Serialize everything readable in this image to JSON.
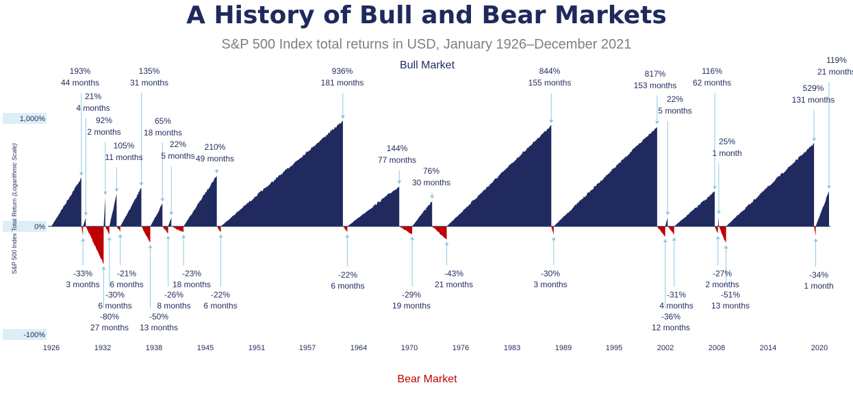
{
  "title": "A History of Bull and Bear Markets",
  "subtitle": "S&P 500 Index total returns in USD, January 1926–December 2021",
  "chart_data": {
    "type": "area",
    "bull_label": "Bull Market",
    "bear_label": "Bear Market",
    "ylabel_main": "S&P 500 Index Total Return",
    "ylabel_note": "(Logarithmic Scale)",
    "y_scale": "log",
    "y_ticks": [
      "1,000%",
      "0%",
      "-100%"
    ],
    "x_ticks": [
      "1926",
      "1932",
      "1938",
      "1945",
      "1951",
      "1957",
      "1964",
      "1970",
      "1976",
      "1983",
      "1989",
      "1995",
      "2002",
      "2008",
      "2014",
      "2020"
    ],
    "x_range": [
      1926,
      2021.9
    ],
    "colors": {
      "bull": "#202a5f",
      "bear": "#c00000",
      "annotation": "#1f2a5c",
      "leader": "#8ec8e0",
      "band": "#ddeef6"
    },
    "bull_markets": [
      {
        "start": 1926.0,
        "end": 1929.7,
        "return_pct": 193,
        "label_pct": "193%",
        "label_dur": "44 months"
      },
      {
        "start": 1929.9,
        "end": 1930.25,
        "return_pct": 21,
        "label_pct": "21%",
        "label_dur": "4 months"
      },
      {
        "start": 1932.45,
        "end": 1932.65,
        "return_pct": 92,
        "label_pct": "92%",
        "label_dur": "2 months"
      },
      {
        "start": 1933.15,
        "end": 1934.05,
        "return_pct": 105,
        "label_pct": "105%",
        "label_dur": "11 months"
      },
      {
        "start": 1934.5,
        "end": 1937.1,
        "return_pct": 135,
        "label_pct": "135%",
        "label_dur": "31 months"
      },
      {
        "start": 1938.2,
        "end": 1939.7,
        "return_pct": 65,
        "label_pct": "65%",
        "label_dur": "18 months"
      },
      {
        "start": 1940.4,
        "end": 1940.8,
        "return_pct": 22,
        "label_pct": "22%",
        "label_dur": "5 months"
      },
      {
        "start": 1942.3,
        "end": 1946.4,
        "return_pct": 210,
        "label_pct": "210%",
        "label_dur": "49 months"
      },
      {
        "start": 1946.9,
        "end": 1961.95,
        "return_pct": 936,
        "label_pct": "936%",
        "label_dur": "181 months"
      },
      {
        "start": 1962.5,
        "end": 1968.9,
        "return_pct": 144,
        "label_pct": "144%",
        "label_dur": "77 months"
      },
      {
        "start": 1970.5,
        "end": 1972.95,
        "return_pct": 76,
        "label_pct": "76%",
        "label_dur": "30 months"
      },
      {
        "start": 1974.75,
        "end": 1987.65,
        "return_pct": 844,
        "label_pct": "844%",
        "label_dur": "155 months"
      },
      {
        "start": 1987.95,
        "end": 2000.7,
        "return_pct": 817,
        "label_pct": "817%",
        "label_dur": "153 months"
      },
      {
        "start": 2001.7,
        "end": 2002.0,
        "return_pct": 22,
        "label_pct": "22%",
        "label_dur": "5 months"
      },
      {
        "start": 2002.8,
        "end": 2007.8,
        "return_pct": 116,
        "label_pct": "116%",
        "label_dur": "62 months"
      },
      {
        "start": 2008.2,
        "end": 2008.3,
        "return_pct": 25,
        "label_pct": "25%",
        "label_dur": "1 month"
      },
      {
        "start": 2009.2,
        "end": 2020.05,
        "return_pct": 529,
        "label_pct": "529%",
        "label_dur": "131 months"
      },
      {
        "start": 2020.25,
        "end": 2021.9,
        "return_pct": 119,
        "label_pct": "119%",
        "label_dur": "21 months"
      }
    ],
    "bear_markets": [
      {
        "start": 1929.7,
        "end": 1929.9,
        "return_pct": -33,
        "label_pct": "-33%",
        "label_dur": "3 months"
      },
      {
        "start": 1930.25,
        "end": 1932.45,
        "return_pct": -80,
        "label_pct": "-80%",
        "label_dur": "27 months"
      },
      {
        "start": 1932.65,
        "end": 1933.15,
        "return_pct": -30,
        "label_pct": "-30%",
        "label_dur": "6 months"
      },
      {
        "start": 1934.05,
        "end": 1934.5,
        "return_pct": -21,
        "label_pct": "-21%",
        "label_dur": "6 months"
      },
      {
        "start": 1937.1,
        "end": 1938.2,
        "return_pct": -50,
        "label_pct": "-50%",
        "label_dur": "13 months"
      },
      {
        "start": 1939.7,
        "end": 1940.4,
        "return_pct": -26,
        "label_pct": "-26%",
        "label_dur": "8 months"
      },
      {
        "start": 1940.8,
        "end": 1942.3,
        "return_pct": -23,
        "label_pct": "-23%",
        "label_dur": "18 months"
      },
      {
        "start": 1946.4,
        "end": 1946.9,
        "return_pct": -22,
        "label_pct": "-22%",
        "label_dur": "6 months"
      },
      {
        "start": 1961.95,
        "end": 1962.5,
        "return_pct": -22,
        "label_pct": "-22%",
        "label_dur": "6 months"
      },
      {
        "start": 1968.9,
        "end": 1970.5,
        "return_pct": -29,
        "label_pct": "-29%",
        "label_dur": "19 months"
      },
      {
        "start": 1972.95,
        "end": 1974.75,
        "return_pct": -43,
        "label_pct": "-43%",
        "label_dur": "21 months"
      },
      {
        "start": 1987.65,
        "end": 1987.95,
        "return_pct": -30,
        "label_pct": "-30%",
        "label_dur": "3 months"
      },
      {
        "start": 2000.7,
        "end": 2001.7,
        "return_pct": -36,
        "label_pct": "-36%",
        "label_dur": "12 months"
      },
      {
        "start": 2002.0,
        "end": 2002.8,
        "return_pct": -31,
        "label_pct": "-31%",
        "label_dur": "4 months"
      },
      {
        "start": 2007.8,
        "end": 2008.2,
        "return_pct": -27,
        "label_pct": "-27%",
        "label_dur": "2 months"
      },
      {
        "start": 2008.3,
        "end": 2009.2,
        "return_pct": -51,
        "label_pct": "-51%",
        "label_dur": "13 months"
      },
      {
        "start": 2020.05,
        "end": 2020.25,
        "return_pct": -34,
        "label_pct": "-34%",
        "label_dur": "1 month"
      }
    ]
  }
}
